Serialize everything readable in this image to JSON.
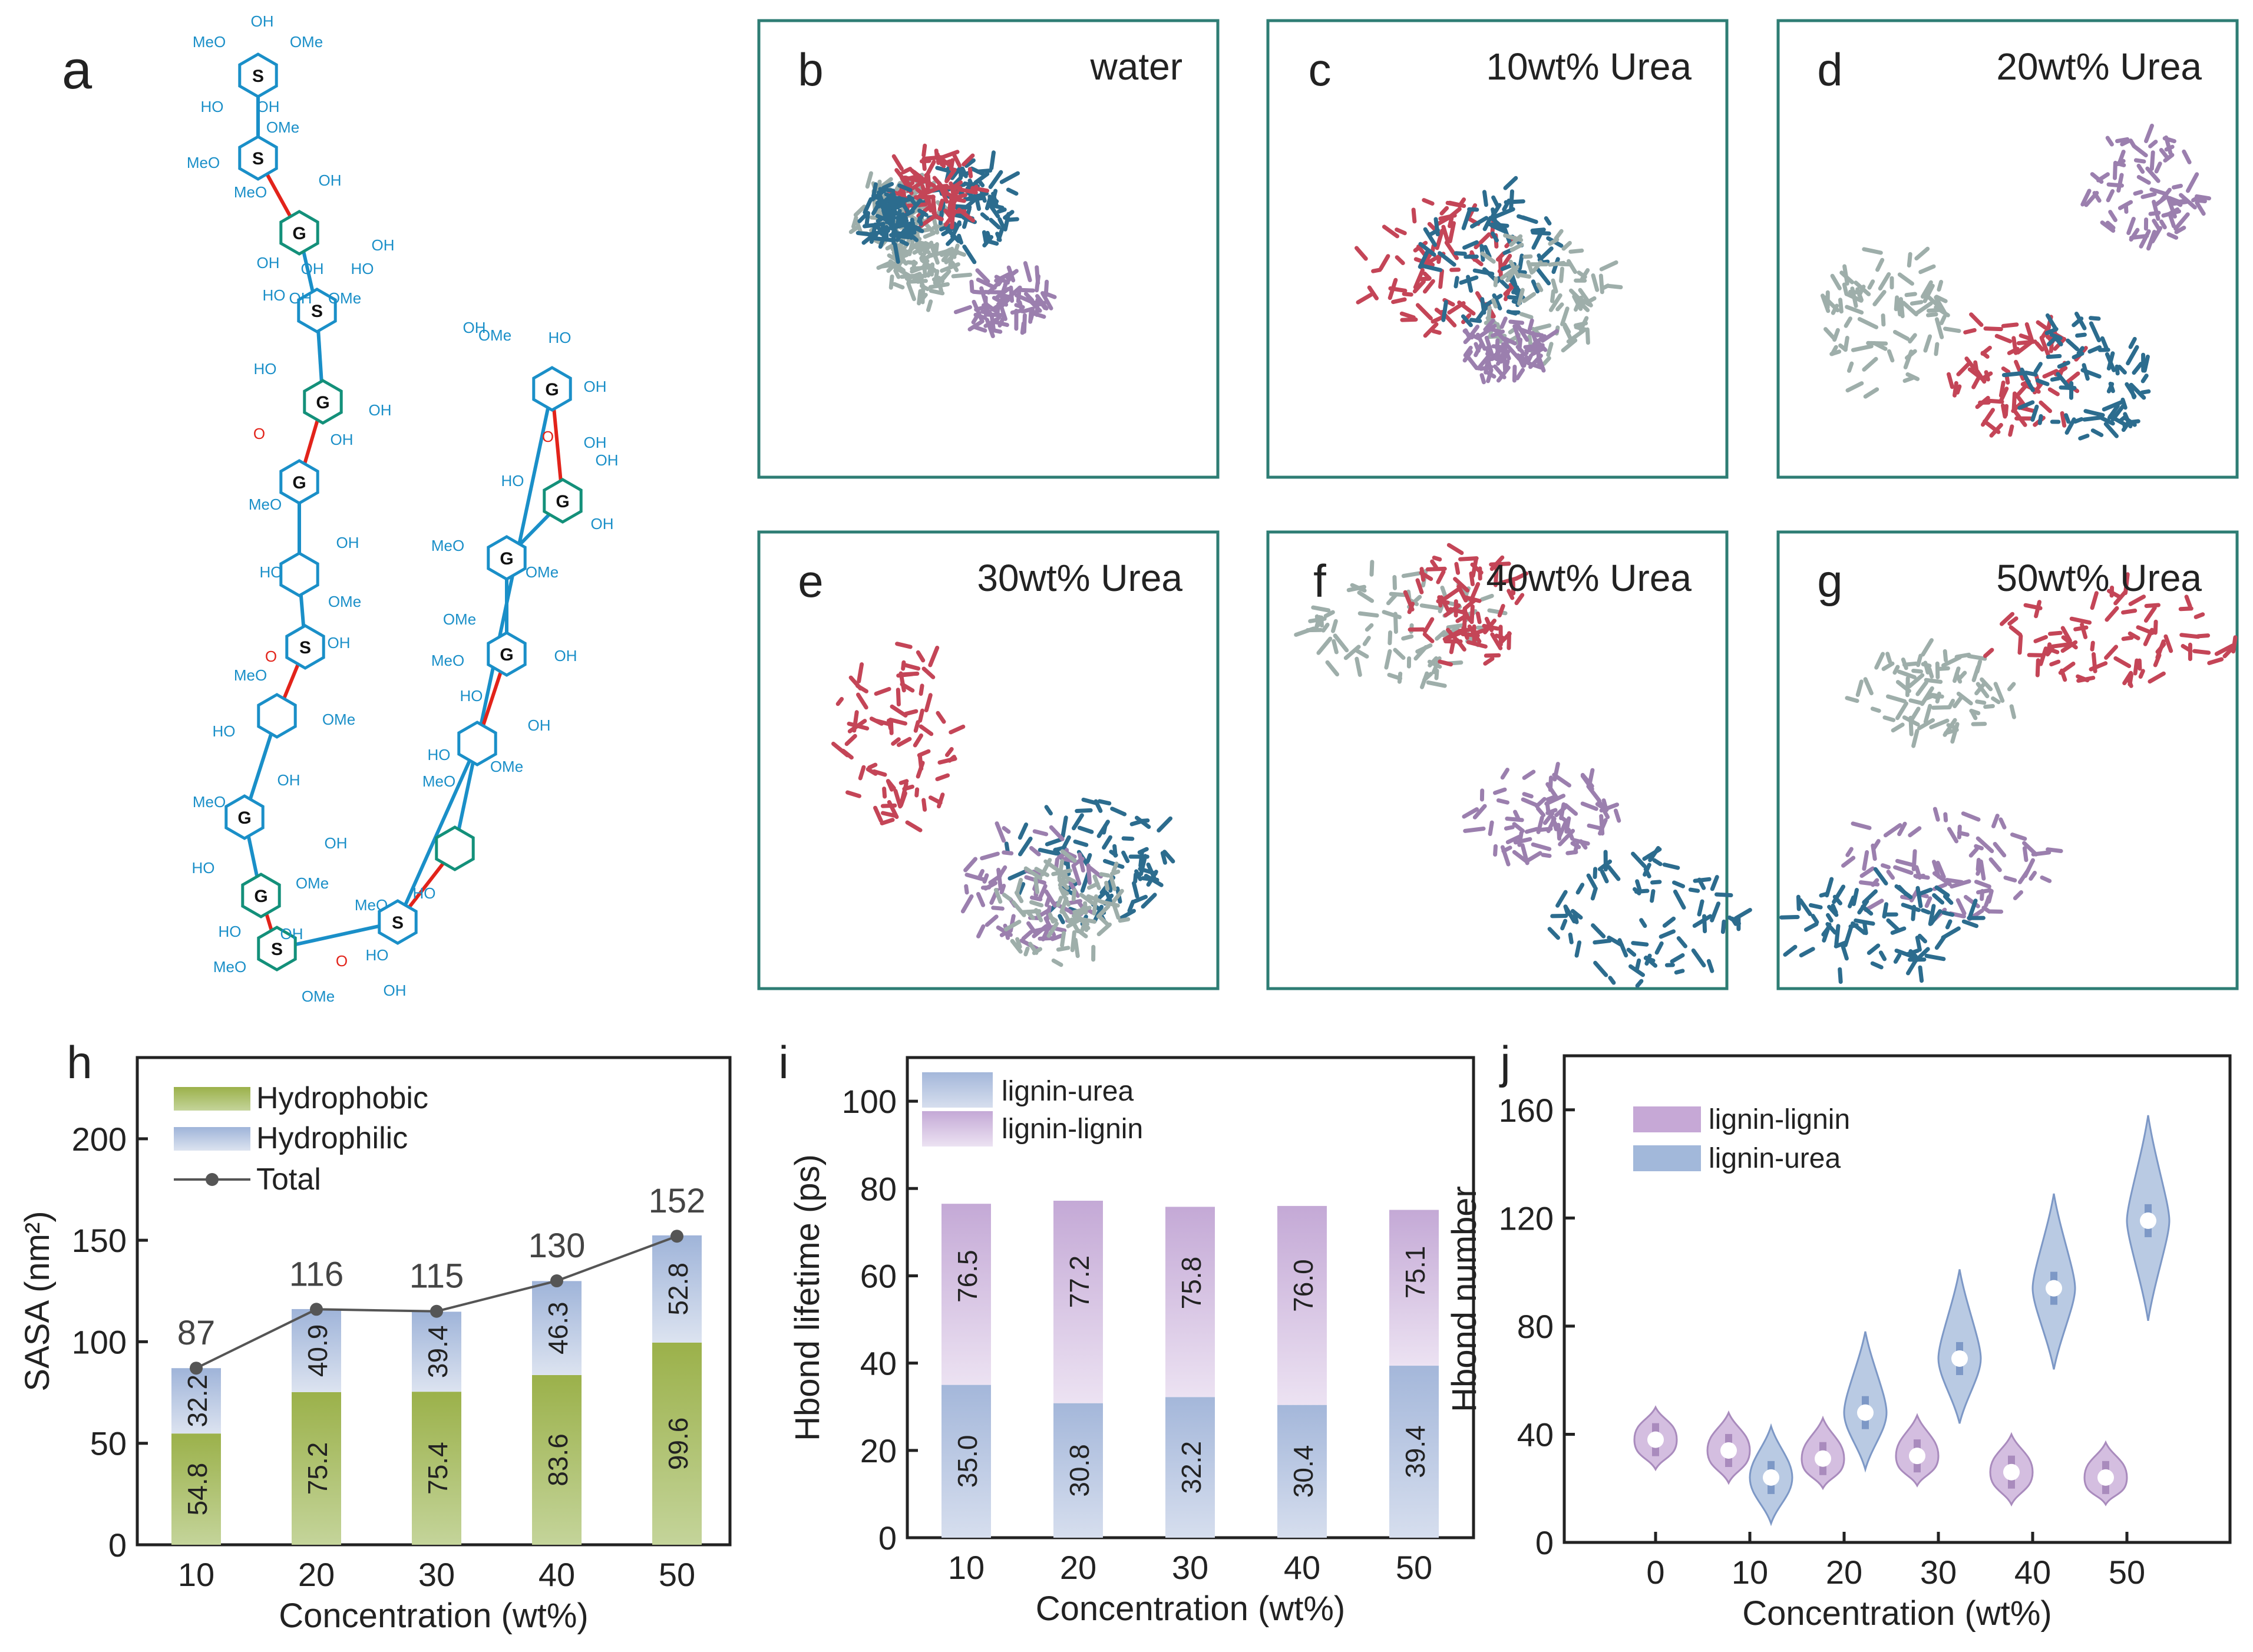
{
  "colors": {
    "teal_frame": "#2e7d74",
    "chem_blue": "#1a8fc8",
    "chem_green": "#13907a",
    "bond_red": "#e2231a",
    "hydrophobic": "#9db34d",
    "hydrophilic": "#a9bcdc",
    "lignin_urea": "#a9bcdc",
    "lignin_lignin": "#c9b3d8",
    "mol_red": "#c44557",
    "mol_blue": "#2c6c8e",
    "mol_gray": "#9eaeaa",
    "mol_purple": "#9b7fae",
    "violin_purple": "#c6a8d6",
    "violin_blue": "#a2b8da"
  },
  "panel_a": {
    "letter": "a",
    "ring_labels": [
      "S",
      "S",
      "G",
      "S",
      "G",
      "G",
      "S",
      "G",
      "G",
      "S",
      "G",
      "G",
      "G",
      "G",
      "S"
    ],
    "group_labels": [
      "OH",
      "MeO",
      "OMe",
      "HO",
      "OH",
      "OMe",
      "MeO",
      "OH",
      "MeO",
      "OH",
      "OH",
      "HO",
      "OH",
      "OH",
      "HO",
      "OMe",
      "HO",
      "OH",
      "O",
      "OH",
      "MeO",
      "OH",
      "HO",
      "OMe",
      "O",
      "OH",
      "MeO",
      "OMe",
      "HO",
      "OH",
      "MeO",
      "HO",
      "OMe",
      "HO",
      "OH",
      "MeO",
      "OH",
      "OMe",
      "HO",
      "OH",
      "O",
      "OH",
      "HO",
      "OH",
      "OH",
      "MeO",
      "OMe",
      "OMe",
      "MeO",
      "OH",
      "HO",
      "OH",
      "HO",
      "MeO",
      "OMe",
      "MeO",
      "HO",
      "OH",
      "OMe",
      "HO",
      "O",
      "OH"
    ]
  },
  "snapshots": [
    {
      "letter": "b",
      "label": "water"
    },
    {
      "letter": "c",
      "label": "10wt% Urea"
    },
    {
      "letter": "d",
      "label": "20wt% Urea"
    },
    {
      "letter": "e",
      "label": "30wt% Urea"
    },
    {
      "letter": "f",
      "label": "40wt% Urea"
    },
    {
      "letter": "g",
      "label": "50wt% Urea"
    }
  ],
  "chart_data": [
    {
      "panel": "h",
      "type": "bar",
      "stacked": true,
      "categories": [
        "10",
        "20",
        "30",
        "40",
        "50"
      ],
      "series": [
        {
          "name": "Hydrophobic",
          "values": [
            54.8,
            75.2,
            75.4,
            83.6,
            99.6
          ]
        },
        {
          "name": "Hydrophilic",
          "values": [
            32.2,
            40.9,
            39.4,
            46.3,
            52.8
          ]
        }
      ],
      "line": {
        "name": "Total",
        "values": [
          87,
          116,
          115,
          130,
          152
        ]
      },
      "total_labels": [
        "87",
        "116",
        "115",
        "130",
        "152"
      ],
      "hydrophobic_labels": [
        "54.8",
        "75.2",
        "75.4",
        "83.6",
        "99.6"
      ],
      "hydrophilic_labels": [
        "32.2",
        "40.9",
        "39.4",
        "46.3",
        "52.8"
      ],
      "legend": [
        "Hydrophobic",
        "Hydrophilic",
        "Total"
      ],
      "xlabel": "Concentration (wt%)",
      "ylabel": "SASA (nm²)",
      "ylim": [
        0,
        240
      ],
      "yticks": [
        "0",
        "50",
        "100",
        "150",
        "200"
      ]
    },
    {
      "panel": "i",
      "type": "bar",
      "stacked": true,
      "categories": [
        "10",
        "20",
        "30",
        "40",
        "50"
      ],
      "series": [
        {
          "name": "lignin-urea",
          "values": [
            35.0,
            30.8,
            32.2,
            30.4,
            39.4
          ]
        },
        {
          "name": "lignin-lignin",
          "values": [
            76.5,
            77.2,
            75.8,
            76.0,
            75.1
          ]
        }
      ],
      "lower_labels": [
        "35.0",
        "30.8",
        "32.2",
        "30.4",
        "39.4"
      ],
      "upper_labels": [
        "76.5",
        "77.2",
        "75.8",
        "76.0",
        "75.1"
      ],
      "legend": [
        "lignin-urea",
        "lignin-lignin"
      ],
      "xlabel": "Concentration (wt%)",
      "ylabel": "Hbond lifetime (ps)",
      "ylim": [
        0,
        110
      ],
      "yticks": [
        "0",
        "20",
        "40",
        "60",
        "80",
        "100"
      ]
    },
    {
      "panel": "j",
      "type": "violin",
      "categories": [
        "0",
        "10",
        "20",
        "30",
        "40",
        "50"
      ],
      "series": [
        {
          "name": "lignin-lignin",
          "medians": [
            38,
            34,
            31,
            32,
            26,
            24
          ],
          "mins": [
            27,
            22,
            20,
            21,
            14,
            14
          ],
          "maxs": [
            50,
            48,
            46,
            47,
            40,
            37
          ]
        },
        {
          "name": "lignin-urea",
          "medians": [
            null,
            24,
            48,
            68,
            94,
            119
          ],
          "mins": [
            null,
            7,
            27,
            44,
            64,
            82
          ],
          "maxs": [
            null,
            43,
            78,
            101,
            129,
            158
          ]
        }
      ],
      "legend": [
        "lignin-lignin",
        "lignin-urea"
      ],
      "xlabel": "Concentration  (wt%)",
      "ylabel": "Hbond number",
      "ylim": [
        0,
        180
      ],
      "yticks": [
        "0",
        "40",
        "80",
        "120",
        "160"
      ]
    }
  ]
}
